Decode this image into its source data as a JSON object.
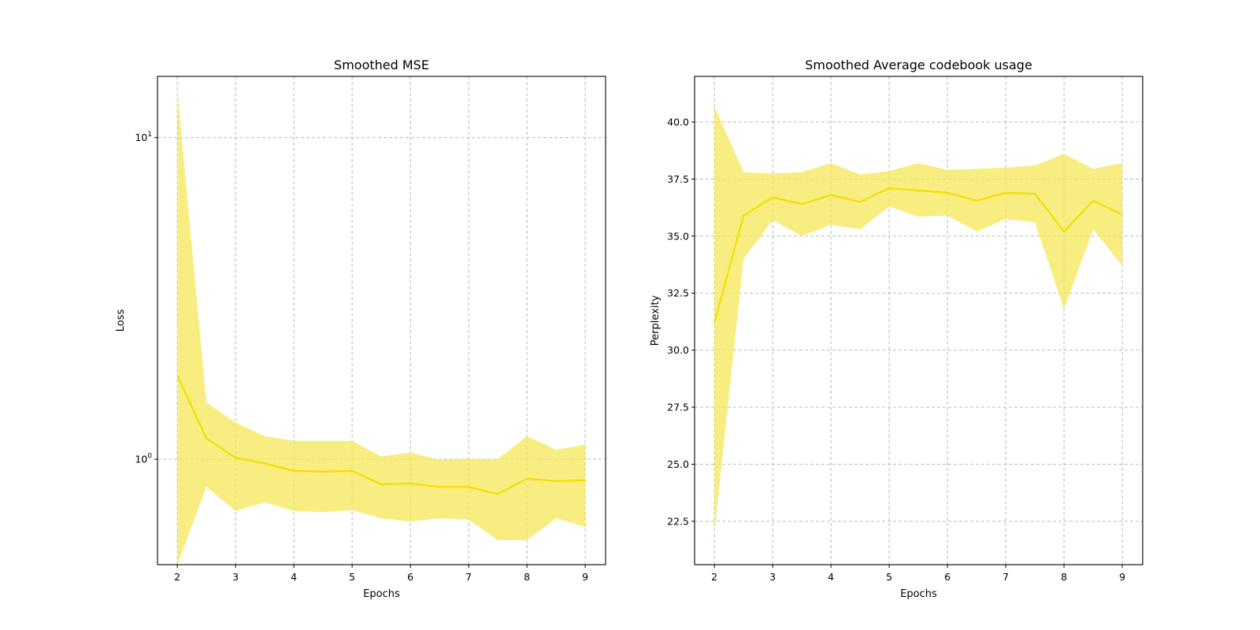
{
  "chart_data": [
    {
      "type": "line",
      "title": "Smoothed MSE",
      "xlabel": "Epochs",
      "ylabel": "Loss",
      "yscale": "log",
      "grid": true,
      "xlim": [
        1.66,
        9.35
      ],
      "ylim": [
        0.47,
        15.5
      ],
      "xticks": [
        2,
        3,
        4,
        5,
        6,
        7,
        8,
        9
      ],
      "xtick_labels": [
        "2",
        "3",
        "4",
        "5",
        "6",
        "7",
        "8",
        "9"
      ],
      "yticks": [
        1,
        10
      ],
      "ytick_labels": [
        {
          "base": "10",
          "exp": "0"
        },
        {
          "base": "10",
          "exp": "1"
        }
      ],
      "color": "#f2e000",
      "band_color": "#f5e85e",
      "series": [
        {
          "x": [
            2,
            2.5,
            3,
            3.5,
            4,
            4.5,
            5,
            5.5,
            6,
            6.5,
            7,
            7.5,
            8,
            8.5,
            9
          ],
          "values": [
            1.82,
            1.16,
            1.01,
            0.97,
            0.92,
            0.915,
            0.92,
            0.835,
            0.84,
            0.82,
            0.82,
            0.78,
            0.87,
            0.855,
            0.86
          ],
          "band_upper": [
            14.0,
            1.5,
            1.3,
            1.18,
            1.14,
            1.14,
            1.14,
            1.02,
            1.05,
            0.995,
            1.005,
            1.0,
            1.18,
            1.07,
            1.11
          ],
          "band_lower": [
            0.47,
            0.82,
            0.69,
            0.735,
            0.69,
            0.685,
            0.695,
            0.655,
            0.64,
            0.655,
            0.648,
            0.56,
            0.56,
            0.655,
            0.615
          ]
        }
      ]
    },
    {
      "type": "line",
      "title": "Smoothed Average codebook usage",
      "xlabel": "Epochs",
      "ylabel": "Perplexity",
      "grid": true,
      "xlim": [
        1.66,
        9.35
      ],
      "ylim": [
        20.6,
        42.0
      ],
      "xticks": [
        2,
        3,
        4,
        5,
        6,
        7,
        8,
        9
      ],
      "xtick_labels": [
        "2",
        "3",
        "4",
        "5",
        "6",
        "7",
        "8",
        "9"
      ],
      "yticks": [
        22.5,
        25.0,
        27.5,
        30.0,
        32.5,
        35.0,
        37.5,
        40.0
      ],
      "ytick_labels": [
        "22.5",
        "25.0",
        "27.5",
        "30.0",
        "32.5",
        "35.0",
        "37.5",
        "40.0"
      ],
      "color": "#f2e000",
      "band_color": "#f5e85e",
      "series": [
        {
          "x": [
            2,
            2.5,
            3,
            3.5,
            4,
            4.5,
            5,
            5.5,
            6,
            6.5,
            7,
            7.5,
            8,
            8.5,
            9
          ],
          "values": [
            31.2,
            35.9,
            36.7,
            36.4,
            36.8,
            36.5,
            37.1,
            37.0,
            36.9,
            36.55,
            36.9,
            36.85,
            35.2,
            36.55,
            35.95
          ],
          "band_upper": [
            40.7,
            37.8,
            37.75,
            37.8,
            38.2,
            37.7,
            37.85,
            38.2,
            37.9,
            37.95,
            38.0,
            38.1,
            38.6,
            37.95,
            38.2
          ],
          "band_lower": [
            22.0,
            34.0,
            35.7,
            35.0,
            35.5,
            35.3,
            36.3,
            35.85,
            35.9,
            35.2,
            35.75,
            35.6,
            31.8,
            35.3,
            33.7
          ]
        }
      ]
    }
  ]
}
